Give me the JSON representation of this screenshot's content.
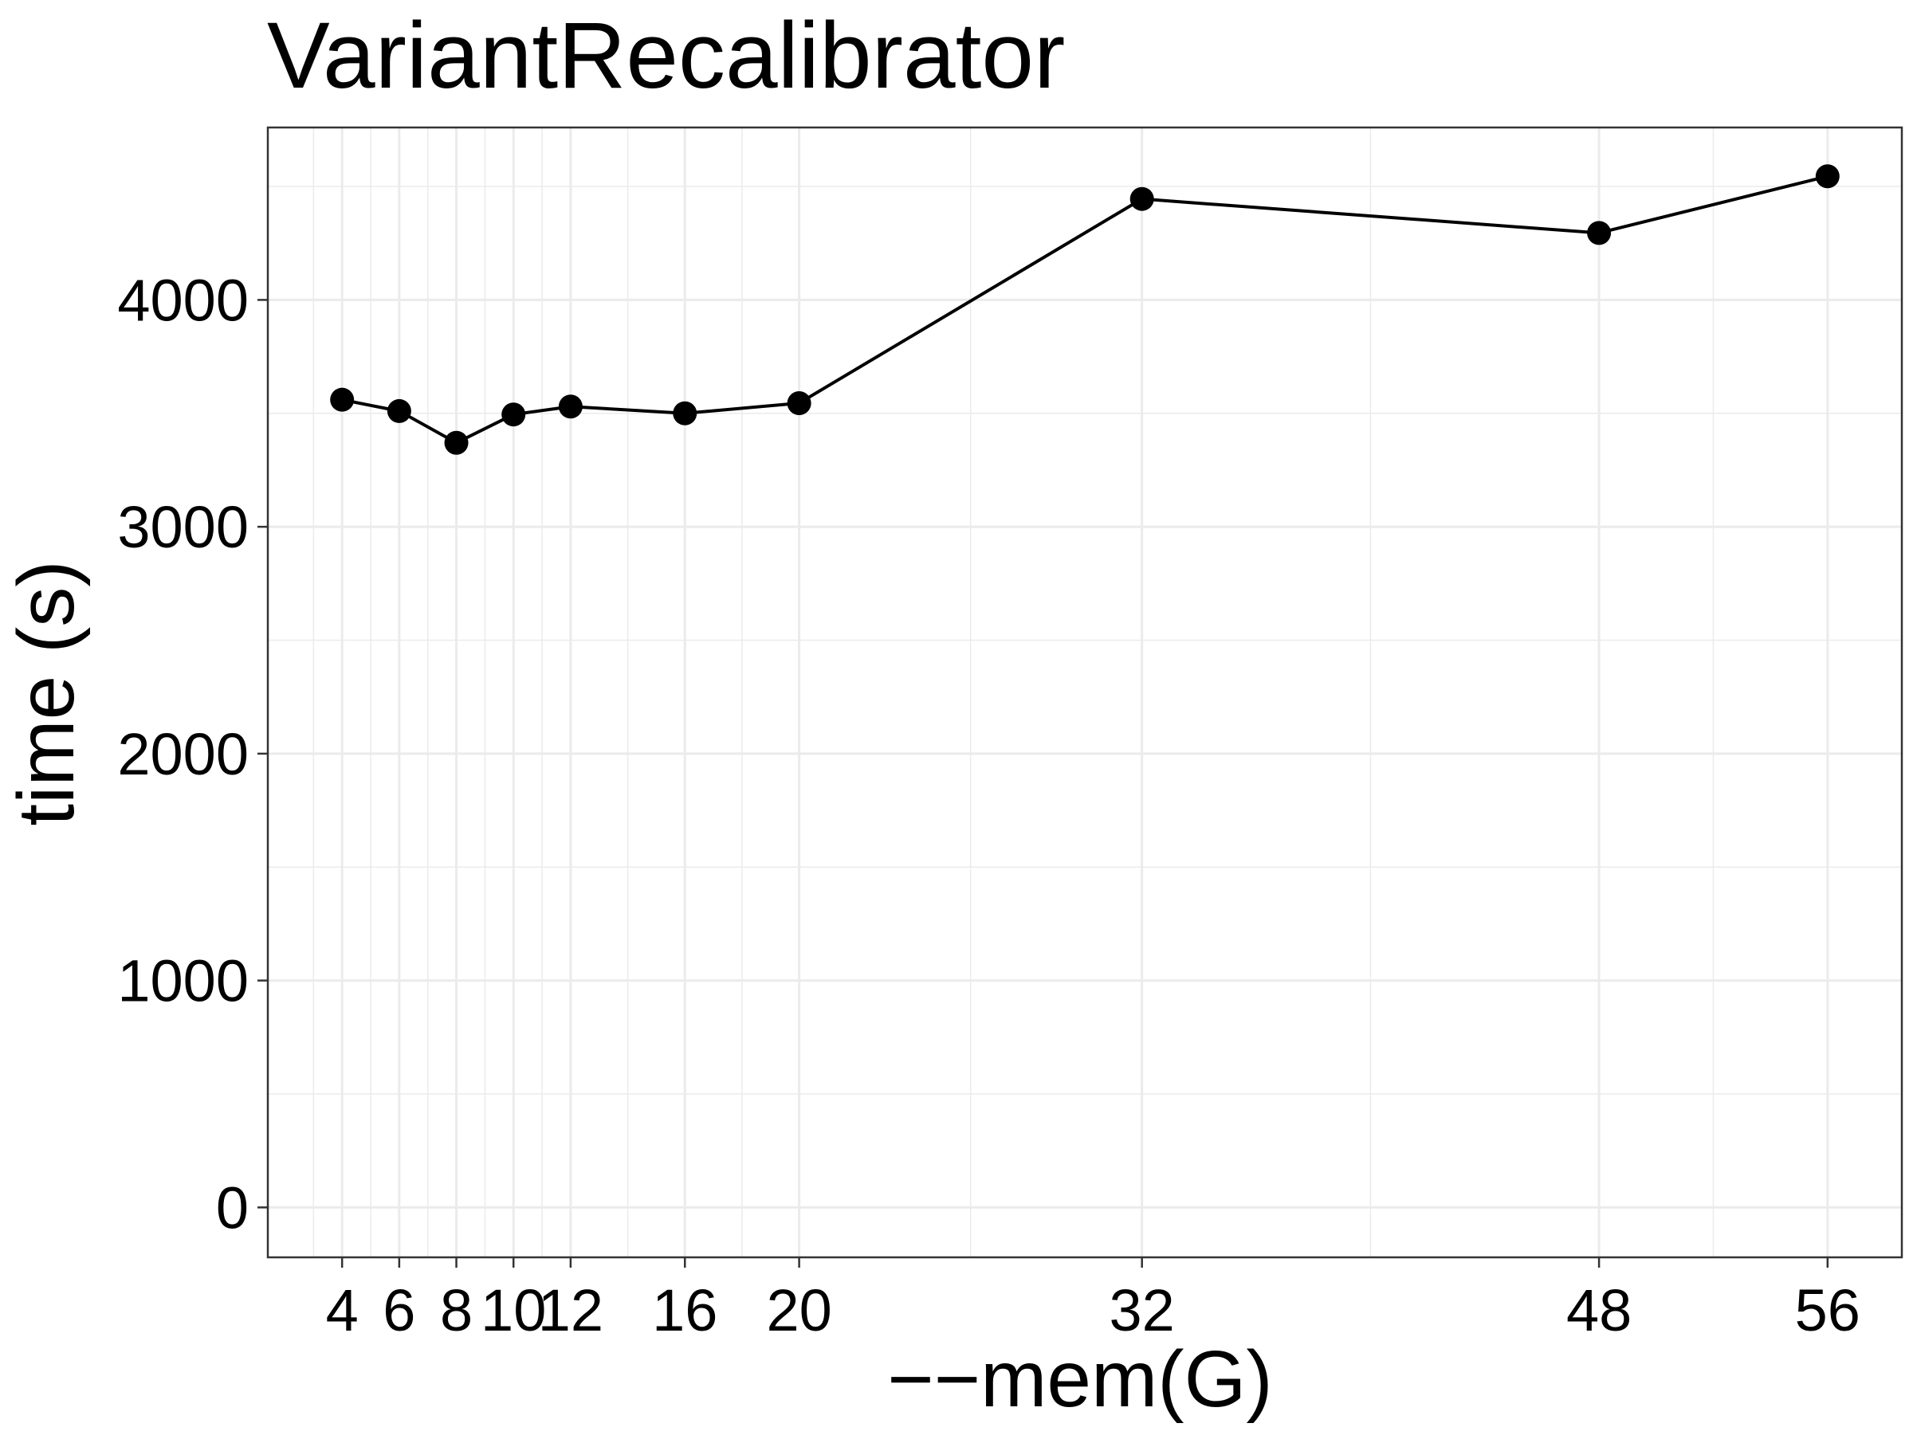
{
  "chart_data": {
    "type": "line",
    "title": "VariantRecalibrator",
    "xlabel": "−−mem(G)",
    "ylabel": "time (s)",
    "x": [
      4,
      6,
      8,
      10,
      12,
      16,
      20,
      32,
      48,
      56
    ],
    "y": [
      3560,
      3510,
      3370,
      3495,
      3530,
      3500,
      3545,
      4445,
      4295,
      4545
    ],
    "x_ticks": [
      4,
      6,
      8,
      10,
      12,
      16,
      20,
      32,
      48,
      56
    ],
    "x_tick_labels": [
      "4",
      "6",
      "8",
      "10",
      "12",
      "16",
      "20",
      "32",
      "48",
      "56"
    ],
    "y_ticks": [
      0,
      1000,
      2000,
      3000,
      4000
    ],
    "y_tick_labels": [
      "0",
      "1000",
      "2000",
      "3000",
      "4000"
    ],
    "xlim": [
      1.4,
      58.6
    ],
    "ylim": [
      -220,
      4760
    ],
    "grid": true,
    "line_color": "#000000",
    "point_color": "#000000",
    "grid_color": "#ebebeb"
  }
}
